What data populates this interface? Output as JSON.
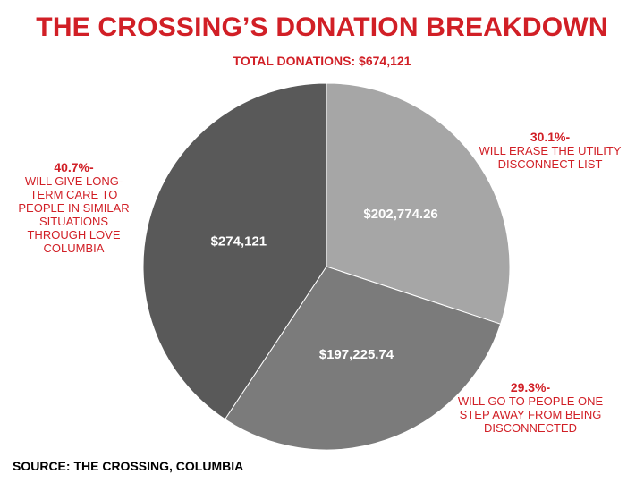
{
  "header": {
    "title": "THE CROSSING’S DONATION BREAKDOWN",
    "subtitle": "TOTAL DONATIONS: $674,121"
  },
  "annotations": [
    {
      "pct": "30.1%-",
      "desc": "WILL ERASE THE UTILITY DISCONNECT LIST"
    },
    {
      "pct": "29.3%-",
      "desc": "WILL GO TO PEOPLE ONE STEP AWAY FROM BEING DISCONNECTED"
    },
    {
      "pct": "40.7%-",
      "desc": "WILL GIVE LONG-TERM CARE TO PEOPLE IN SIMILAR SITUATIONS THROUGH LOVE COLUMBIA"
    }
  ],
  "source": "SOURCE: THE CROSSING, COLUMBIA",
  "colors": {
    "accent": "#d11f26",
    "slice_light": "#a6a6a6",
    "slice_mid": "#7b7b7b",
    "slice_dark": "#595959"
  },
  "chart_data": {
    "type": "pie",
    "title": "THE CROSSING’S DONATION BREAKDOWN",
    "subtitle": "TOTAL DONATIONS: $674,121",
    "start_angle_deg": 0,
    "direction": "clockwise",
    "slices": [
      {
        "value": 202774.26,
        "label": "$202,774.26",
        "percent": 30.1,
        "color": "#a6a6a6"
      },
      {
        "value": 197225.74,
        "label": "$197,225.74",
        "percent": 29.3,
        "color": "#7b7b7b"
      },
      {
        "value": 274121,
        "label": "$274,121",
        "percent": 40.7,
        "color": "#595959"
      }
    ]
  }
}
